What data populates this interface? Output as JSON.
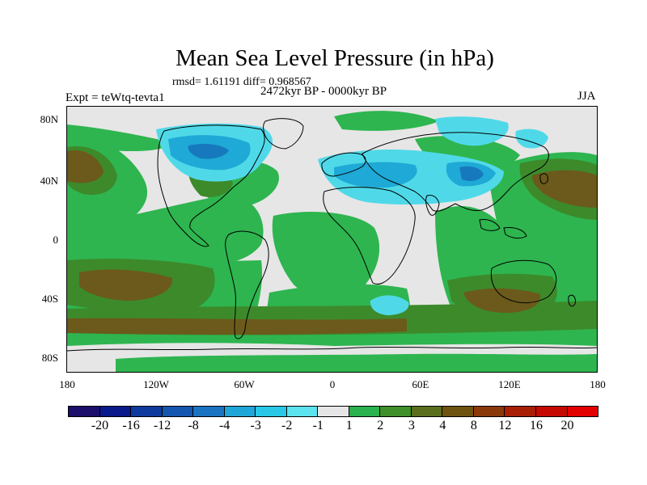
{
  "title": "Mean Sea Level Pressure (in hPa)",
  "stats": "rmsd= 1.61191 diff= 0.968567",
  "experiment": "Expt = teWtq-tevta1",
  "period": "2472kyr BP - 0000kyr BP",
  "season": "JJA",
  "lat_labels": [
    "80N",
    "40N",
    "0",
    "40S",
    "80S"
  ],
  "lon_labels": [
    "180",
    "120W",
    "60W",
    "0",
    "60E",
    "120E",
    "180"
  ],
  "colorbar": {
    "labels": [
      "-20",
      "-16",
      "-12",
      "-8",
      "-4",
      "-3",
      "-2",
      "-1",
      "1",
      "2",
      "3",
      "4",
      "8",
      "12",
      "16",
      "20"
    ],
    "colors": [
      "#1b0f6b",
      "#0a1a8a",
      "#0f3a9e",
      "#1556b0",
      "#1a74c2",
      "#1fa6d8",
      "#28c8e6",
      "#5de3f0",
      "#e6e6e6",
      "#29b24d",
      "#3f8f2a",
      "#5a6e1d",
      "#6e5410",
      "#8a3a0a",
      "#a81f06",
      "#c40a02",
      "#e20000"
    ]
  },
  "field_colors": {
    "neutral": "#e6e6e6",
    "pos_light": "#2eb54f",
    "pos_mid": "#3d8a2b",
    "pos_dark": "#6b5a1b",
    "pos_brown": "#7a4a12",
    "neg_light": "#4fd9e8",
    "neg_mid": "#1fa9d6",
    "neg_dark": "#1779bd"
  }
}
